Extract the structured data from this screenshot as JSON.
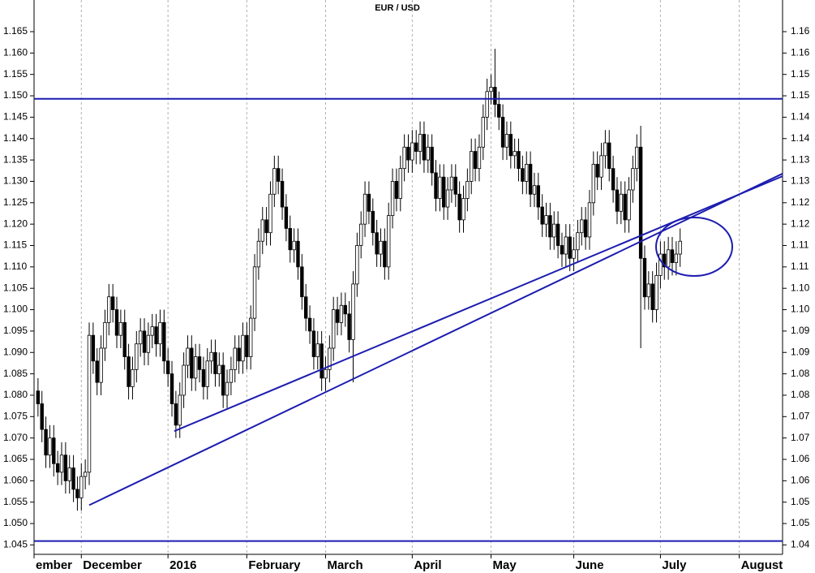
{
  "chart_data": {
    "type": "candlestick",
    "title": "EUR / USD",
    "x": [
      1,
      2,
      3,
      4,
      5,
      6,
      7,
      8,
      9,
      10,
      11,
      12,
      13,
      14,
      15,
      16,
      17,
      18,
      19,
      20,
      21,
      22,
      23,
      24,
      25,
      26,
      27,
      28,
      29,
      30,
      31,
      32,
      33,
      34,
      35,
      36,
      37,
      38,
      39,
      40,
      41,
      42,
      43,
      44,
      45,
      46,
      47,
      48,
      49,
      50,
      51,
      52,
      53,
      54,
      55,
      56,
      57,
      58,
      59,
      60,
      61,
      62,
      63,
      64,
      65,
      66,
      67,
      68,
      69,
      70,
      71,
      72,
      73,
      74,
      75,
      76,
      77,
      78,
      79,
      80,
      81,
      82,
      83,
      84,
      85,
      86,
      87,
      88,
      89,
      90,
      91,
      92,
      93,
      94,
      95,
      96,
      97,
      98,
      99,
      100,
      101,
      102,
      103,
      104,
      105,
      106,
      107,
      108,
      109,
      110,
      111,
      112,
      113,
      114,
      115,
      116,
      117,
      118,
      119,
      120,
      121,
      122,
      123,
      124,
      125,
      126,
      127,
      128,
      129,
      130,
      131,
      132,
      133,
      134,
      135,
      136,
      137,
      138,
      139,
      140,
      141,
      142,
      143,
      144,
      145,
      146,
      147,
      148,
      149,
      150,
      151,
      152,
      153,
      154,
      155,
      156,
      157,
      158,
      159,
      160,
      161,
      162,
      163,
      164
    ],
    "open": [
      1.081,
      1.078,
      1.072,
      1.066,
      1.07,
      1.064,
      1.062,
      1.066,
      1.06,
      1.063,
      1.058,
      1.056,
      1.061,
      1.062,
      1.094,
      1.088,
      1.083,
      1.091,
      1.097,
      1.103,
      1.1,
      1.094,
      1.097,
      1.089,
      1.082,
      1.086,
      1.092,
      1.095,
      1.09,
      1.094,
      1.096,
      1.092,
      1.097,
      1.088,
      1.085,
      1.078,
      1.073,
      1.08,
      1.087,
      1.091,
      1.084,
      1.089,
      1.086,
      1.082,
      1.088,
      1.09,
      1.085,
      1.087,
      1.08,
      1.083,
      1.086,
      1.091,
      1.088,
      1.094,
      1.089,
      1.098,
      1.11,
      1.116,
      1.121,
      1.118,
      1.127,
      1.133,
      1.13,
      1.124,
      1.119,
      1.114,
      1.116,
      1.11,
      1.103,
      1.098,
      1.095,
      1.089,
      1.092,
      1.084,
      1.086,
      1.091,
      1.1,
      1.097,
      1.101,
      1.099,
      1.093,
      1.106,
      1.115,
      1.12,
      1.127,
      1.123,
      1.118,
      1.113,
      1.116,
      1.11,
      1.122,
      1.13,
      1.126,
      1.133,
      1.138,
      1.135,
      1.139,
      1.137,
      1.141,
      1.135,
      1.138,
      1.132,
      1.126,
      1.131,
      1.124,
      1.128,
      1.131,
      1.127,
      1.121,
      1.126,
      1.13,
      1.137,
      1.133,
      1.138,
      1.145,
      1.151,
      1.152,
      1.148,
      1.145,
      1.138,
      1.141,
      1.136,
      1.137,
      1.133,
      1.13,
      1.134,
      1.127,
      1.129,
      1.124,
      1.12,
      1.122,
      1.117,
      1.12,
      1.115,
      1.113,
      1.117,
      1.112,
      1.114,
      1.118,
      1.121,
      1.117,
      1.125,
      1.134,
      1.131,
      1.136,
      1.139,
      1.133,
      1.128,
      1.123,
      1.127,
      1.121,
      1.128,
      1.133,
      1.138,
      1.112,
      1.103,
      1.106,
      1.1,
      1.108,
      1.113,
      1.11,
      1.114,
      1.111,
      1.113
    ],
    "high": [
      1.084,
      1.081,
      1.075,
      1.073,
      1.073,
      1.067,
      1.069,
      1.069,
      1.066,
      1.066,
      1.061,
      1.064,
      1.065,
      1.097,
      1.097,
      1.091,
      1.094,
      1.1,
      1.106,
      1.106,
      1.103,
      1.1,
      1.1,
      1.092,
      1.089,
      1.095,
      1.098,
      1.098,
      1.097,
      1.099,
      1.099,
      1.1,
      1.1,
      1.091,
      1.088,
      1.081,
      1.083,
      1.09,
      1.094,
      1.094,
      1.092,
      1.092,
      1.089,
      1.091,
      1.093,
      1.093,
      1.09,
      1.09,
      1.086,
      1.089,
      1.094,
      1.094,
      1.097,
      1.097,
      1.101,
      1.113,
      1.119,
      1.124,
      1.124,
      1.13,
      1.136,
      1.136,
      1.133,
      1.127,
      1.122,
      1.119,
      1.119,
      1.113,
      1.106,
      1.101,
      1.098,
      1.095,
      1.095,
      1.089,
      1.094,
      1.103,
      1.103,
      1.104,
      1.104,
      1.102,
      1.109,
      1.118,
      1.123,
      1.13,
      1.13,
      1.126,
      1.121,
      1.119,
      1.119,
      1.125,
      1.133,
      1.133,
      1.136,
      1.141,
      1.141,
      1.142,
      1.142,
      1.144,
      1.144,
      1.141,
      1.141,
      1.135,
      1.134,
      1.134,
      1.131,
      1.134,
      1.134,
      1.13,
      1.129,
      1.133,
      1.14,
      1.14,
      1.141,
      1.148,
      1.154,
      1.155,
      1.161,
      1.151,
      1.148,
      1.144,
      1.144,
      1.14,
      1.14,
      1.136,
      1.137,
      1.137,
      1.132,
      1.132,
      1.127,
      1.125,
      1.125,
      1.123,
      1.123,
      1.118,
      1.12,
      1.12,
      1.117,
      1.121,
      1.124,
      1.124,
      1.128,
      1.137,
      1.137,
      1.139,
      1.142,
      1.142,
      1.136,
      1.131,
      1.13,
      1.13,
      1.131,
      1.136,
      1.141,
      1.143,
      1.115,
      1.109,
      1.109,
      1.111,
      1.116,
      1.116,
      1.117,
      1.117,
      1.116,
      1.119
    ],
    "low": [
      1.075,
      1.069,
      1.063,
      1.063,
      1.061,
      1.059,
      1.059,
      1.057,
      1.057,
      1.055,
      1.053,
      1.053,
      1.058,
      1.059,
      1.085,
      1.08,
      1.08,
      1.088,
      1.094,
      1.097,
      1.091,
      1.091,
      1.086,
      1.079,
      1.079,
      1.083,
      1.089,
      1.087,
      1.087,
      1.091,
      1.089,
      1.089,
      1.085,
      1.082,
      1.075,
      1.07,
      1.07,
      1.077,
      1.084,
      1.081,
      1.081,
      1.083,
      1.079,
      1.079,
      1.085,
      1.082,
      1.082,
      1.077,
      1.077,
      1.08,
      1.083,
      1.085,
      1.085,
      1.086,
      1.086,
      1.095,
      1.107,
      1.113,
      1.115,
      1.115,
      1.124,
      1.127,
      1.121,
      1.116,
      1.111,
      1.111,
      1.107,
      1.1,
      1.095,
      1.092,
      1.086,
      1.086,
      1.081,
      1.081,
      1.083,
      1.088,
      1.094,
      1.094,
      1.096,
      1.09,
      1.083,
      1.103,
      1.112,
      1.117,
      1.12,
      1.115,
      1.11,
      1.11,
      1.107,
      1.107,
      1.119,
      1.123,
      1.123,
      1.13,
      1.132,
      1.132,
      1.134,
      1.134,
      1.132,
      1.132,
      1.129,
      1.123,
      1.123,
      1.121,
      1.121,
      1.125,
      1.124,
      1.118,
      1.118,
      1.123,
      1.127,
      1.13,
      1.13,
      1.135,
      1.142,
      1.148,
      1.145,
      1.142,
      1.135,
      1.135,
      1.133,
      1.133,
      1.13,
      1.127,
      1.127,
      1.124,
      1.124,
      1.121,
      1.117,
      1.117,
      1.114,
      1.114,
      1.112,
      1.11,
      1.11,
      1.109,
      1.109,
      1.111,
      1.115,
      1.114,
      1.114,
      1.122,
      1.128,
      1.128,
      1.133,
      1.13,
      1.125,
      1.12,
      1.12,
      1.118,
      1.118,
      1.125,
      1.13,
      1.091,
      1.1,
      1.1,
      1.097,
      1.097,
      1.105,
      1.107,
      1.107,
      1.108,
      1.108,
      1.11
    ],
    "close": [
      1.078,
      1.072,
      1.066,
      1.07,
      1.064,
      1.062,
      1.066,
      1.06,
      1.063,
      1.058,
      1.056,
      1.061,
      1.062,
      1.094,
      1.088,
      1.083,
      1.091,
      1.097,
      1.103,
      1.1,
      1.094,
      1.097,
      1.089,
      1.082,
      1.086,
      1.092,
      1.095,
      1.09,
      1.094,
      1.096,
      1.092,
      1.097,
      1.088,
      1.085,
      1.078,
      1.073,
      1.08,
      1.087,
      1.091,
      1.084,
      1.089,
      1.086,
      1.082,
      1.088,
      1.09,
      1.085,
      1.087,
      1.08,
      1.083,
      1.086,
      1.091,
      1.088,
      1.094,
      1.089,
      1.098,
      1.11,
      1.116,
      1.121,
      1.118,
      1.127,
      1.133,
      1.13,
      1.124,
      1.119,
      1.114,
      1.116,
      1.11,
      1.103,
      1.098,
      1.095,
      1.089,
      1.092,
      1.084,
      1.086,
      1.091,
      1.1,
      1.097,
      1.101,
      1.099,
      1.093,
      1.106,
      1.115,
      1.12,
      1.127,
      1.123,
      1.118,
      1.113,
      1.116,
      1.11,
      1.122,
      1.13,
      1.126,
      1.133,
      1.138,
      1.135,
      1.139,
      1.137,
      1.141,
      1.135,
      1.138,
      1.132,
      1.126,
      1.131,
      1.124,
      1.128,
      1.131,
      1.127,
      1.121,
      1.126,
      1.13,
      1.137,
      1.133,
      1.138,
      1.145,
      1.151,
      1.152,
      1.148,
      1.145,
      1.138,
      1.141,
      1.136,
      1.137,
      1.133,
      1.13,
      1.134,
      1.127,
      1.129,
      1.124,
      1.12,
      1.122,
      1.117,
      1.12,
      1.115,
      1.113,
      1.117,
      1.112,
      1.114,
      1.118,
      1.121,
      1.117,
      1.125,
      1.134,
      1.131,
      1.136,
      1.139,
      1.133,
      1.128,
      1.123,
      1.127,
      1.121,
      1.128,
      1.133,
      1.138,
      1.112,
      1.103,
      1.106,
      1.1,
      1.108,
      1.113,
      1.11,
      1.114,
      1.111,
      1.113,
      1.116
    ],
    "up_color": "#ffffff",
    "down_color": "#000000",
    "line_color": "#1c1cb0",
    "xlim": [
      0,
      190
    ],
    "xticks": [
      {
        "value": 0,
        "label": "ember"
      },
      {
        "value": 12,
        "label": "December"
      },
      {
        "value": 34,
        "label": "2016"
      },
      {
        "value": 54,
        "label": "February"
      },
      {
        "value": 74,
        "label": "March"
      },
      {
        "value": 96,
        "label": "April"
      },
      {
        "value": 116,
        "label": "May"
      },
      {
        "value": 137,
        "label": "June"
      },
      {
        "value": 159,
        "label": "July"
      },
      {
        "value": 179,
        "label": "August"
      }
    ],
    "ylim": [
      1.0428,
      1.1724
    ],
    "yticks": [
      {
        "value": 1.045,
        "label": "1.045"
      },
      {
        "value": 1.05,
        "label": "1.050"
      },
      {
        "value": 1.055,
        "label": "1.055"
      },
      {
        "value": 1.06,
        "label": "1.060"
      },
      {
        "value": 1.065,
        "label": "1.065"
      },
      {
        "value": 1.07,
        "label": "1.070"
      },
      {
        "value": 1.075,
        "label": "1.075"
      },
      {
        "value": 1.08,
        "label": "1.080"
      },
      {
        "value": 1.085,
        "label": "1.085"
      },
      {
        "value": 1.09,
        "label": "1.090"
      },
      {
        "value": 1.095,
        "label": "1.095"
      },
      {
        "value": 1.1,
        "label": "1.100"
      },
      {
        "value": 1.105,
        "label": "1.105"
      },
      {
        "value": 1.11,
        "label": "1.110"
      },
      {
        "value": 1.115,
        "label": "1.115"
      },
      {
        "value": 1.12,
        "label": "1.120"
      },
      {
        "value": 1.125,
        "label": "1.125"
      },
      {
        "value": 1.13,
        "label": "1.130"
      },
      {
        "value": 1.135,
        "label": "1.135"
      },
      {
        "value": 1.14,
        "label": "1.140"
      },
      {
        "value": 1.145,
        "label": "1.145"
      },
      {
        "value": 1.15,
        "label": "1.150"
      },
      {
        "value": 1.155,
        "label": "1.155"
      },
      {
        "value": 1.16,
        "label": "1.160"
      },
      {
        "value": 1.165,
        "label": "1.165"
      }
    ],
    "y2lim": [
      1.0428,
      1.1724
    ],
    "y2ticks": [
      {
        "value": 1.045,
        "label": "1.04"
      },
      {
        "value": 1.05,
        "label": "1.05"
      },
      {
        "value": 1.055,
        "label": "1.05"
      },
      {
        "value": 1.06,
        "label": "1.06"
      },
      {
        "value": 1.065,
        "label": "1.06"
      },
      {
        "value": 1.07,
        "label": "1.07"
      },
      {
        "value": 1.075,
        "label": "1.07"
      },
      {
        "value": 1.08,
        "label": "1.08"
      },
      {
        "value": 1.085,
        "label": "1.08"
      },
      {
        "value": 1.09,
        "label": "1.09"
      },
      {
        "value": 1.095,
        "label": "1.09"
      },
      {
        "value": 1.1,
        "label": "1.10"
      },
      {
        "value": 1.105,
        "label": "1.10"
      },
      {
        "value": 1.11,
        "label": "1.11"
      },
      {
        "value": 1.115,
        "label": "1.11"
      },
      {
        "value": 1.12,
        "label": "1.12"
      },
      {
        "value": 1.125,
        "label": "1.12"
      },
      {
        "value": 1.13,
        "label": "1.13"
      },
      {
        "value": 1.135,
        "label": "1.13"
      },
      {
        "value": 1.14,
        "label": "1.14"
      },
      {
        "value": 1.145,
        "label": "1.14"
      },
      {
        "value": 1.15,
        "label": "1.15"
      },
      {
        "value": 1.155,
        "label": "1.15"
      },
      {
        "value": 1.16,
        "label": "1.16"
      },
      {
        "value": 1.165,
        "label": "1.16"
      }
    ],
    "grid": true,
    "hlines": [
      1.1493,
      1.0459
    ],
    "trendlines": [
      {
        "x": [
          14,
          190
        ],
        "y": [
          1.0543,
          1.1318
        ]
      },
      {
        "x": [
          35.6,
          190
        ],
        "y": [
          1.0716,
          1.1312
        ]
      }
    ]
  }
}
